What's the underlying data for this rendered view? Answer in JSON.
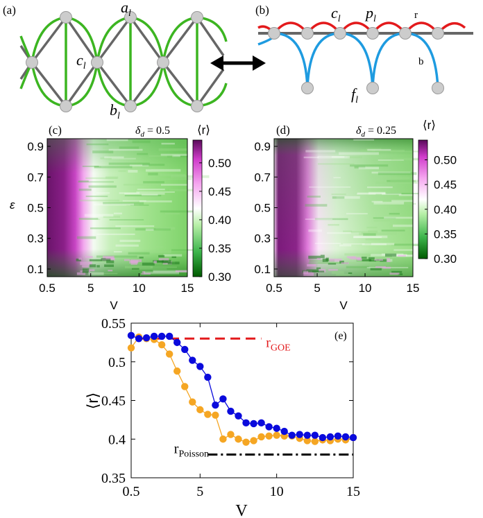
{
  "panel_a": {
    "tag": "(a)",
    "labels": {
      "a": "a",
      "a_sub": "l",
      "b": "b",
      "b_sub": "l",
      "c": "c",
      "c_sub": "l"
    },
    "colors": {
      "green": "#3cb521",
      "gray": "#666666",
      "node": "#cccccc"
    }
  },
  "panel_b": {
    "tag": "(b)",
    "labels": {
      "c": "c",
      "c_sub": "l",
      "p": "p",
      "p_sub": "l",
      "f": "f",
      "f_sub": "l",
      "r": "r",
      "b": "b"
    },
    "colors": {
      "red": "#e31a1c",
      "blue": "#1e9be0",
      "gray": "#666666"
    }
  },
  "arrow": {
    "name": "double-arrow-icon"
  },
  "chart_data": [
    {
      "type": "heatmap",
      "panel": "(c)",
      "title": "δ_d = 0.5",
      "title_symbol": "δ",
      "title_sub": "d",
      "title_value": " = 0.5",
      "xlabel": "V",
      "ylabel": "ε",
      "xticks": [
        "0.5",
        "5",
        "10",
        "15"
      ],
      "yticks": [
        "0.1",
        "0.3",
        "0.5",
        "0.7",
        "0.9"
      ],
      "xlim": [
        0.5,
        15
      ],
      "ylim": [
        0.05,
        0.95
      ],
      "colorbar": {
        "label": "⟨r⟩",
        "min": 0.3,
        "max": 0.54,
        "ticks": [
          "0.50",
          "0.45",
          "0.40",
          "0.35",
          "0.30"
        ]
      }
    },
    {
      "type": "heatmap",
      "panel": "(d)",
      "title": "δ_d = 0.25",
      "title_symbol": "δ",
      "title_sub": "d",
      "title_value": " = 0.25",
      "xlabel": "V",
      "ylabel": "",
      "xticks": [
        "0.5",
        "5",
        "10",
        "15"
      ],
      "yticks": [
        "0.1",
        "0.3",
        "0.5",
        "0.7",
        "0.9"
      ],
      "xlim": [
        0.5,
        15
      ],
      "ylim": [
        0.05,
        0.95
      ],
      "colorbar": {
        "label": "⟨r⟩",
        "min": 0.3,
        "max": 0.54,
        "ticks": [
          "0.50",
          "0.45",
          "0.40",
          "0.35",
          "0.30"
        ]
      }
    },
    {
      "type": "line",
      "panel": "(e)",
      "xlabel": "V",
      "ylabel": "⟨r⟩",
      "xlim": [
        0.5,
        15
      ],
      "ylim": [
        0.35,
        0.55
      ],
      "xticks": [
        "0.5",
        "5",
        "10",
        "15"
      ],
      "yticks": [
        "0.35",
        "0.4",
        "0.45",
        "0.5",
        "0.55"
      ],
      "series": [
        {
          "color": "#0a0adc",
          "x": [
            0.5,
            1,
            1.5,
            2,
            2.5,
            3,
            3.5,
            4,
            4.5,
            5,
            5.5,
            6,
            6.5,
            7,
            7.5,
            8,
            8.5,
            9,
            9.5,
            10,
            10.5,
            11,
            11.5,
            12,
            12.5,
            13,
            13.5,
            14,
            14.5,
            15
          ],
          "y": [
            0.534,
            0.53,
            0.531,
            0.533,
            0.533,
            0.533,
            0.525,
            0.516,
            0.502,
            0.494,
            0.48,
            0.444,
            0.452,
            0.436,
            0.43,
            0.421,
            0.42,
            0.421,
            0.416,
            0.414,
            0.41,
            0.405,
            0.406,
            0.405,
            0.405,
            0.402,
            0.403,
            0.404,
            0.403,
            0.402
          ]
        },
        {
          "color": "#f5a623",
          "x": [
            0.5,
            1,
            1.5,
            2,
            2.5,
            3,
            3.5,
            4,
            4.5,
            5,
            5.5,
            6,
            6.5,
            7,
            7.5,
            8,
            8.5,
            9,
            9.5,
            10,
            10.5,
            11,
            11.5,
            12,
            12.5,
            13,
            13.5,
            14,
            14.5,
            15
          ],
          "y": [
            0.518,
            0.532,
            0.53,
            0.529,
            0.522,
            0.51,
            0.488,
            0.468,
            0.448,
            0.438,
            0.432,
            0.431,
            0.4,
            0.406,
            0.4,
            0.396,
            0.398,
            0.403,
            0.404,
            0.405,
            0.404,
            0.404,
            0.401,
            0.398,
            0.397,
            0.399,
            0.398,
            0.4,
            0.399,
            0.402
          ]
        }
      ],
      "reference_lines": [
        {
          "y": 0.53,
          "label": "r",
          "label_sub": "GOE",
          "color": "#e31a1c",
          "style": "dashed"
        },
        {
          "y": 0.38,
          "label": "r",
          "label_sub": "Poisson",
          "color": "#000000",
          "style": "dash-dot"
        }
      ]
    }
  ]
}
